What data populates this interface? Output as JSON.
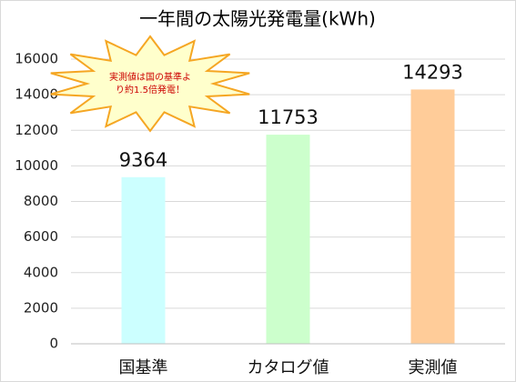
{
  "chart_data": {
    "type": "bar",
    "title": "一年間の太陽光発電量(kWh)",
    "categories": [
      "国基準",
      "カタログ値",
      "実測値"
    ],
    "values": [
      9364,
      11753,
      14293
    ],
    "colors": [
      "#ccffff",
      "#ccffcc",
      "#ffcc99"
    ],
    "ylim": [
      0,
      16000
    ],
    "yticks": [
      0,
      2000,
      4000,
      6000,
      8000,
      10000,
      12000,
      14000,
      16000
    ],
    "grid": true,
    "annotation": [
      "実測値は国の基準よ",
      "り約1.5倍発電！"
    ]
  }
}
